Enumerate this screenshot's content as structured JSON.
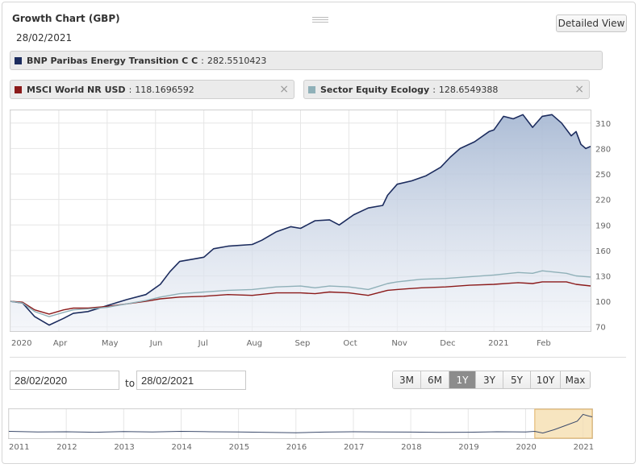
{
  "header": {
    "title": "Growth Chart (GBP)",
    "date": "28/02/2021",
    "detail_button": "Detailed View",
    "grip_icon": "drag-handle-icon"
  },
  "legend": [
    {
      "name": "BNP Paribas Energy Transition C C",
      "separator": ":",
      "value": "282.5510423",
      "color": "#1c2c5e",
      "removable": false
    },
    {
      "name": "MSCI World NR USD",
      "separator": ":",
      "value": "118.1696592",
      "color": "#8b1a1a",
      "removable": true,
      "close": "×"
    },
    {
      "name": "Sector Equity Ecology",
      "separator": ":",
      "value": "128.6549388",
      "color": "#8fb0b8",
      "removable": true,
      "close": "×"
    }
  ],
  "range": {
    "from": "28/02/2020",
    "to_label": "to",
    "to": "28/02/2021"
  },
  "range_buttons": [
    {
      "label": "3M",
      "active": false
    },
    {
      "label": "6M",
      "active": false
    },
    {
      "label": "1Y",
      "active": true
    },
    {
      "label": "3Y",
      "active": false
    },
    {
      "label": "5Y",
      "active": false
    },
    {
      "label": "10Y",
      "active": false
    },
    {
      "label": "Max",
      "active": false
    }
  ],
  "chart_data": {
    "type": "area",
    "x_ticks": [
      "2020",
      "Apr",
      "May",
      "Jun",
      "Jul",
      "Aug",
      "Sep",
      "Oct",
      "Nov",
      "Dec",
      "2021",
      "Feb"
    ],
    "y_ticks": [
      70,
      100,
      130,
      160,
      190,
      220,
      250,
      280,
      310
    ],
    "ylim": [
      65,
      325
    ],
    "x_unit": "months since 28/02/2020",
    "xlim": [
      0,
      12
    ],
    "grid": true,
    "y_axis_side": "right",
    "series": [
      {
        "name": "BNP Paribas Energy Transition C C",
        "color": "#1c2c5e",
        "fill": true,
        "x": [
          0,
          0.25,
          0.5,
          0.8,
          1.1,
          1.3,
          1.6,
          2.0,
          2.4,
          2.8,
          3.1,
          3.3,
          3.5,
          3.8,
          4.0,
          4.2,
          4.5,
          5.0,
          5.2,
          5.5,
          5.8,
          6.0,
          6.3,
          6.6,
          6.8,
          7.1,
          7.4,
          7.7,
          7.8,
          8.0,
          8.3,
          8.6,
          8.9,
          9.1,
          9.3,
          9.6,
          9.9,
          10.0,
          10.2,
          10.4,
          10.6,
          10.8,
          11.0,
          11.2,
          11.4,
          11.6,
          11.7,
          11.8,
          11.9,
          12.0
        ],
        "values": [
          100,
          98,
          82,
          72,
          80,
          86,
          88,
          95,
          102,
          108,
          120,
          135,
          147,
          150,
          152,
          162,
          165,
          167,
          172,
          182,
          188,
          186,
          195,
          196,
          190,
          202,
          210,
          213,
          225,
          238,
          242,
          248,
          258,
          270,
          280,
          288,
          300,
          302,
          318,
          315,
          320,
          305,
          318,
          320,
          310,
          295,
          300,
          285,
          280,
          282.55
        ]
      },
      {
        "name": "MSCI World NR USD",
        "color": "#8b1a1a",
        "fill": false,
        "x": [
          0,
          0.25,
          0.5,
          0.8,
          1.1,
          1.3,
          1.6,
          2.0,
          2.4,
          2.8,
          3.1,
          3.5,
          4.0,
          4.5,
          5.0,
          5.5,
          6.0,
          6.3,
          6.6,
          7.0,
          7.4,
          7.8,
          8.0,
          8.5,
          9.0,
          9.5,
          10.0,
          10.5,
          10.8,
          11.0,
          11.5,
          11.7,
          12.0
        ],
        "values": [
          100,
          99,
          90,
          85,
          90,
          92,
          92,
          94,
          97,
          100,
          103,
          105,
          106,
          108,
          107,
          110,
          110,
          109,
          111,
          110,
          107,
          113,
          114,
          116,
          117,
          119,
          120,
          122,
          121,
          123,
          123,
          120,
          118.17
        ]
      },
      {
        "name": "Sector Equity Ecology",
        "color": "#8fb0b8",
        "fill": false,
        "x": [
          0,
          0.25,
          0.5,
          0.8,
          1.1,
          1.3,
          1.6,
          2.0,
          2.4,
          2.8,
          3.1,
          3.5,
          4.0,
          4.5,
          5.0,
          5.5,
          6.0,
          6.3,
          6.6,
          7.0,
          7.4,
          7.8,
          8.0,
          8.5,
          9.0,
          9.5,
          10.0,
          10.5,
          10.8,
          11.0,
          11.5,
          11.7,
          12.0
        ],
        "values": [
          100,
          98,
          88,
          82,
          87,
          90,
          91,
          93,
          97,
          101,
          105,
          109,
          111,
          113,
          114,
          117,
          118,
          116,
          118,
          117,
          114,
          121,
          123,
          126,
          127,
          129,
          131,
          134,
          133,
          136,
          133,
          130,
          128.65
        ]
      }
    ]
  },
  "navigator": {
    "x_ticks": [
      "2011",
      "2012",
      "2013",
      "2014",
      "2015",
      "2016",
      "2017",
      "2018",
      "2019",
      "2020",
      "2021"
    ],
    "x_unit": "years since 2011",
    "xlim": [
      0,
      10.16
    ],
    "selection": [
      9.16,
      10.16
    ],
    "handle_color": "#f5deb0",
    "values_x": [
      0,
      0.5,
      1,
      1.5,
      2,
      2.5,
      3,
      3.5,
      4,
      4.5,
      5,
      5.5,
      6,
      6.5,
      7,
      7.5,
      8,
      8.5,
      9,
      9.16,
      9.3,
      9.5,
      9.7,
      9.9,
      10.0,
      10.1,
      10.16
    ],
    "values": [
      100,
      97,
      98,
      95,
      99,
      97,
      100,
      98,
      97,
      94,
      92,
      96,
      98,
      97,
      96,
      94,
      95,
      98,
      97,
      100,
      90,
      110,
      135,
      160,
      200,
      190,
      185
    ]
  }
}
